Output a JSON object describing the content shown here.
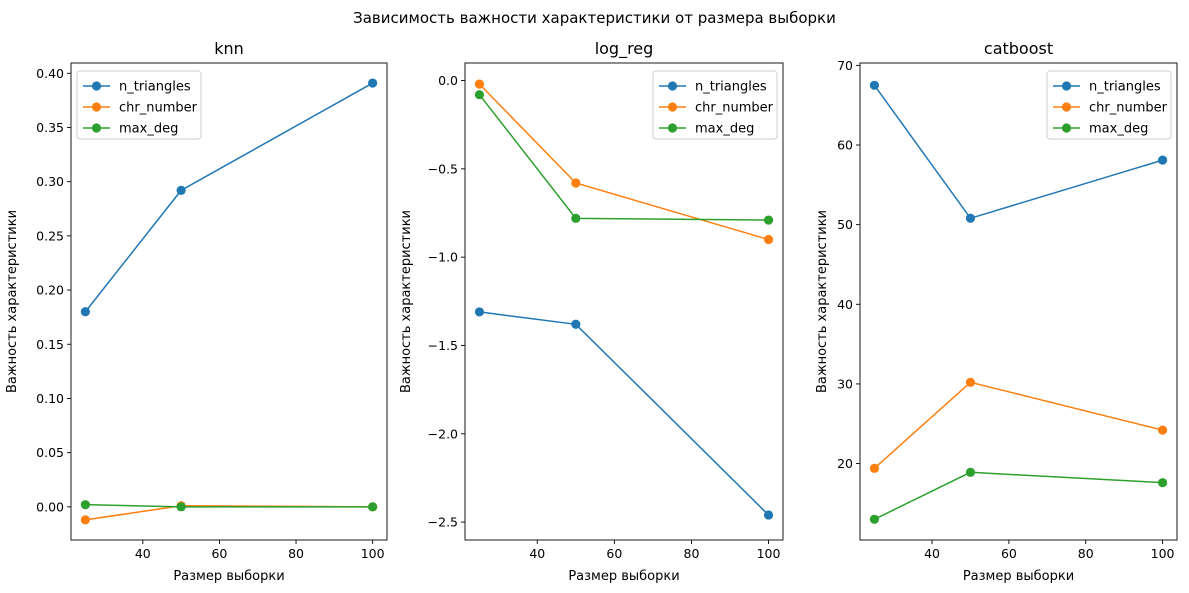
{
  "figure": {
    "suptitle": "Зависимость важности характеристики от размера выборки"
  },
  "colors": {
    "n_triangles": "#1f77b4",
    "chr_number": "#ff7f0e",
    "max_deg": "#2ca02c"
  },
  "chart_data": [
    {
      "type": "line",
      "title": "knn",
      "xlabel": "Размер выборки",
      "ylabel": "Важность характеристики",
      "x": [
        25,
        50,
        100
      ],
      "xlim": [
        21.25,
        103.75
      ],
      "ylim": [
        -0.0306,
        0.4095
      ],
      "xticks": [
        40,
        60,
        80,
        100
      ],
      "yticks": [
        0.0,
        0.05,
        0.1,
        0.15,
        0.2,
        0.25,
        0.3,
        0.35,
        0.4
      ],
      "ytick_labels": [
        "0.00",
        "0.05",
        "0.10",
        "0.15",
        "0.20",
        "0.25",
        "0.30",
        "0.35",
        "0.40"
      ],
      "legend_position": "upper-left",
      "series": [
        {
          "name": "n_triangles",
          "values": [
            0.18,
            0.292,
            0.391
          ]
        },
        {
          "name": "chr_number",
          "values": [
            -0.012,
            0.001,
            0.0
          ]
        },
        {
          "name": "max_deg",
          "values": [
            0.002,
            0.0,
            0.0
          ]
        }
      ]
    },
    {
      "type": "line",
      "title": "log_reg",
      "xlabel": "Размер выборки",
      "ylabel": "Важность характеристики",
      "x": [
        25,
        50,
        100
      ],
      "xlim": [
        21.25,
        103.75
      ],
      "ylim": [
        -2.6015,
        0.0995
      ],
      "xticks": [
        40,
        60,
        80,
        100
      ],
      "yticks": [
        0.0,
        -0.5,
        -1.0,
        -1.5,
        -2.0,
        -2.5
      ],
      "ytick_labels": [
        "0.0",
        "−0.5",
        "−1.0",
        "−1.5",
        "−2.0",
        "−2.5"
      ],
      "legend_position": "upper-right",
      "series": [
        {
          "name": "n_triangles",
          "values": [
            -1.31,
            -1.38,
            -2.46
          ]
        },
        {
          "name": "chr_number",
          "values": [
            -0.02,
            -0.58,
            -0.9
          ]
        },
        {
          "name": "max_deg",
          "values": [
            -0.08,
            -0.78,
            -0.79
          ]
        }
      ]
    },
    {
      "type": "line",
      "title": "catboost",
      "xlabel": "Размер выборки",
      "ylabel": "Важность характеристики",
      "x": [
        25,
        50,
        100
      ],
      "xlim": [
        21.25,
        103.75
      ],
      "ylim": [
        10.4,
        70.3
      ],
      "xticks": [
        40,
        60,
        80,
        100
      ],
      "yticks": [
        20,
        30,
        40,
        50,
        60,
        70
      ],
      "ytick_labels": [
        "20",
        "30",
        "40",
        "50",
        "60",
        "70"
      ],
      "legend_position": "upper-right",
      "series": [
        {
          "name": "n_triangles",
          "values": [
            67.5,
            50.8,
            58.1
          ]
        },
        {
          "name": "chr_number",
          "values": [
            19.4,
            30.2,
            24.2
          ]
        },
        {
          "name": "max_deg",
          "values": [
            13.0,
            18.9,
            17.6
          ]
        }
      ]
    }
  ]
}
